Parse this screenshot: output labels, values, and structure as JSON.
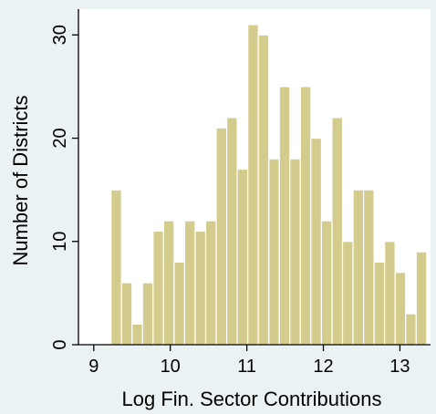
{
  "chart_data": {
    "type": "bar",
    "title": "",
    "xlabel": "Log Fin. Sector Contributions",
    "ylabel": "Number of Districts",
    "bin_width": 0.1375,
    "bins": [
      {
        "x_start": 9.225,
        "count": 15
      },
      {
        "x_start": 9.3625,
        "count": 6
      },
      {
        "x_start": 9.5,
        "count": 2
      },
      {
        "x_start": 9.6375,
        "count": 6
      },
      {
        "x_start": 9.775,
        "count": 11
      },
      {
        "x_start": 9.9125,
        "count": 12
      },
      {
        "x_start": 10.05,
        "count": 8
      },
      {
        "x_start": 10.1875,
        "count": 12
      },
      {
        "x_start": 10.325,
        "count": 11
      },
      {
        "x_start": 10.4625,
        "count": 12
      },
      {
        "x_start": 10.6,
        "count": 21
      },
      {
        "x_start": 10.7375,
        "count": 22
      },
      {
        "x_start": 10.875,
        "count": 17
      },
      {
        "x_start": 11.0125,
        "count": 31
      },
      {
        "x_start": 11.15,
        "count": 30
      },
      {
        "x_start": 11.2875,
        "count": 18
      },
      {
        "x_start": 11.425,
        "count": 25
      },
      {
        "x_start": 11.5625,
        "count": 18
      },
      {
        "x_start": 11.7,
        "count": 25
      },
      {
        "x_start": 11.8375,
        "count": 20
      },
      {
        "x_start": 11.975,
        "count": 12
      },
      {
        "x_start": 12.1125,
        "count": 22
      },
      {
        "x_start": 12.25,
        "count": 10
      },
      {
        "x_start": 12.3875,
        "count": 15
      },
      {
        "x_start": 12.525,
        "count": 15
      },
      {
        "x_start": 12.6625,
        "count": 8
      },
      {
        "x_start": 12.8,
        "count": 10
      },
      {
        "x_start": 12.9375,
        "count": 7
      },
      {
        "x_start": 13.075,
        "count": 3
      },
      {
        "x_start": 13.2125,
        "count": 9
      }
    ],
    "xlim": [
      8.8,
      13.4
    ],
    "ylim": [
      0,
      32.5
    ],
    "x_ticks": [
      9,
      10,
      11,
      12,
      13
    ],
    "y_ticks": [
      0,
      10,
      20,
      30
    ],
    "grid": false,
    "colors": {
      "bar_fill": "#d4cc8c",
      "bar_stroke": "#ffffff",
      "plot_background": "#ffffff",
      "outer_background": "#eaf2f3",
      "axis": "#000000"
    }
  }
}
